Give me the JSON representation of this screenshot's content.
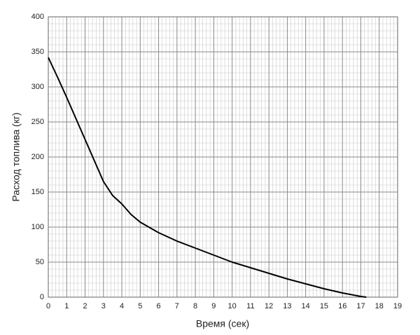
{
  "chart_data": {
    "type": "line",
    "x_label": "Время (сек)",
    "y_label": "Расход топлива (кг)",
    "x": [
      0,
      0.5,
      1,
      1.5,
      2,
      2.5,
      3,
      3.5,
      4,
      4.5,
      5,
      6,
      7,
      8,
      9,
      10,
      11,
      12,
      13,
      14,
      15,
      16,
      17,
      17.3
    ],
    "series": [
      {
        "name": "Расход топлива",
        "color": "#000000",
        "values": [
          342,
          314,
          285,
          255,
          225,
          195,
          165,
          145,
          133,
          118,
          107,
          92,
          80,
          70,
          60,
          50,
          42,
          34,
          26,
          19,
          12,
          6,
          1,
          0
        ]
      }
    ],
    "xlim": [
      0,
      19
    ],
    "ylim": [
      0,
      400
    ],
    "xticks": [
      0,
      1,
      2,
      3,
      4,
      5,
      6,
      7,
      8,
      9,
      10,
      11,
      12,
      13,
      14,
      15,
      16,
      17,
      18,
      19
    ],
    "yticks": [
      0,
      50,
      100,
      150,
      200,
      250,
      300,
      350,
      400
    ],
    "grid": true,
    "minor_grid_step": {
      "x": 0.2,
      "y": 10
    }
  }
}
